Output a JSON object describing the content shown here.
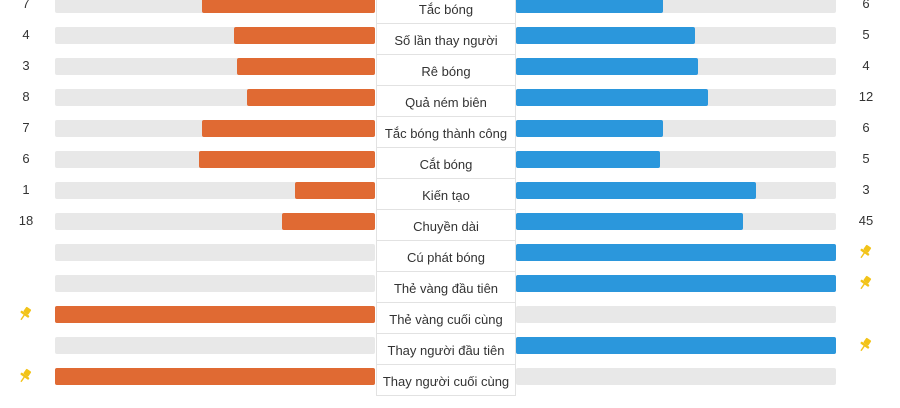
{
  "colors": {
    "home": "#e06a33",
    "away": "#2b97dc",
    "track": "#e8e8e8",
    "pin": "#f2c318"
  },
  "stats": [
    {
      "label": "Tắc bóng",
      "home": "7",
      "away": "6",
      "home_fraction": 0.54,
      "away_fraction": 0.46
    },
    {
      "label": "Số lần thay người",
      "home": "4",
      "away": "5",
      "home_fraction": 0.44,
      "away_fraction": 0.56
    },
    {
      "label": "Rê bóng",
      "home": "3",
      "away": "4",
      "home_fraction": 0.43,
      "away_fraction": 0.57
    },
    {
      "label": "Quả ném biên",
      "home": "8",
      "away": "12",
      "home_fraction": 0.4,
      "away_fraction": 0.6
    },
    {
      "label": "Tắc bóng thành công",
      "home": "7",
      "away": "6",
      "home_fraction": 0.54,
      "away_fraction": 0.46
    },
    {
      "label": "Cắt bóng",
      "home": "6",
      "away": "5",
      "home_fraction": 0.55,
      "away_fraction": 0.45
    },
    {
      "label": "Kiến tạo",
      "home": "1",
      "away": "3",
      "home_fraction": 0.25,
      "away_fraction": 0.75
    },
    {
      "label": "Chuyền dài",
      "home": "18",
      "away": "45",
      "home_fraction": 0.29,
      "away_fraction": 0.71
    },
    {
      "label": "Cú phát bóng",
      "home": "",
      "away": "",
      "home_fraction": 0,
      "away_fraction": 1,
      "home_icon": "",
      "away_icon": "pin-icon"
    },
    {
      "label": "Thẻ vàng đầu tiên",
      "home": "",
      "away": "",
      "home_fraction": 0,
      "away_fraction": 1,
      "home_icon": "",
      "away_icon": "pin-icon"
    },
    {
      "label": "Thẻ vàng cuối cùng",
      "home": "",
      "away": "",
      "home_fraction": 1,
      "away_fraction": 0,
      "home_icon": "pin-icon",
      "away_icon": ""
    },
    {
      "label": "Thay người đầu tiên",
      "home": "",
      "away": "",
      "home_fraction": 0,
      "away_fraction": 1,
      "home_icon": "",
      "away_icon": "pin-icon"
    },
    {
      "label": "Thay người cuối cùng",
      "home": "",
      "away": "",
      "home_fraction": 1,
      "away_fraction": 0,
      "home_icon": "pin-icon",
      "away_icon": ""
    }
  ]
}
